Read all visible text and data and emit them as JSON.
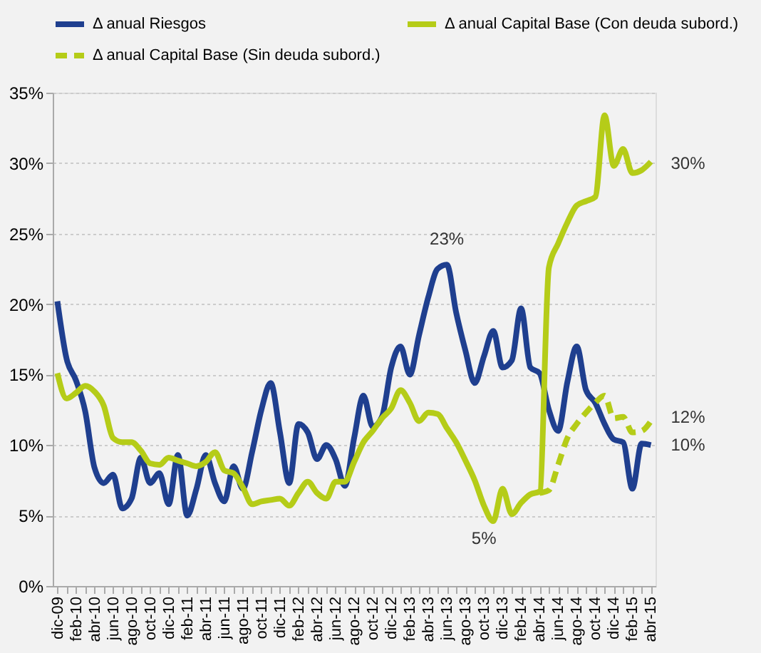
{
  "chart_data": {
    "type": "line",
    "categories": [
      "dic-09",
      null,
      "feb-10",
      null,
      "abr-10",
      null,
      "jun-10",
      null,
      "ago-10",
      null,
      "oct-10",
      null,
      "dic-10",
      null,
      "feb-11",
      null,
      "abr-11",
      null,
      "jun-11",
      null,
      "ago-11",
      null,
      "oct-11",
      null,
      "dic-11",
      null,
      "feb-12",
      null,
      "abr-12",
      null,
      "jun-12",
      null,
      "ago-12",
      null,
      "oct-12",
      null,
      "dic-12",
      null,
      "feb-13",
      null,
      "abr-13",
      null,
      "jun-13",
      null,
      "ago-13",
      null,
      "oct-13",
      null,
      "dic-13",
      null,
      "feb-14",
      null,
      "abr-14",
      null,
      "jun-14",
      null,
      "ago-14",
      null,
      "oct-14",
      null,
      "dic-14",
      null,
      "feb-15",
      null,
      "abr-15"
    ],
    "series": [
      {
        "name": "Δ anual Riesgos",
        "color": "#1f3f8f",
        "line_style": "solid",
        "values": [
          20.2,
          16.1,
          14.6,
          12.4,
          8.4,
          7.3,
          7.9,
          5.5,
          6.2,
          9.1,
          7.3,
          8.0,
          5.8,
          9.3,
          5.0,
          6.9,
          9.3,
          7.3,
          6.0,
          8.5,
          6.9,
          9.5,
          12.5,
          14.4,
          10.9,
          7.3,
          11.5,
          10.9,
          9.0,
          10.0,
          9.0,
          7.1,
          10.5,
          13.5,
          11.3,
          12.0,
          15.5,
          17.0,
          15.0,
          17.8,
          20.5,
          22.5,
          22.8,
          19.4,
          16.7,
          14.4,
          16.3,
          18.1,
          15.5,
          16.0,
          19.7,
          15.5,
          15.1,
          12.5,
          11.0,
          14.5,
          17.0,
          13.9,
          13.0,
          11.5,
          10.4,
          10.2,
          6.9,
          10.1,
          10.0
        ]
      },
      {
        "name": "Δ anual Capital Base (Con deuda subord.)",
        "color": "#b5cc18",
        "line_style": "solid",
        "values": [
          15.1,
          13.3,
          13.7,
          14.2,
          13.8,
          12.8,
          10.5,
          10.2,
          10.2,
          9.6,
          8.7,
          8.6,
          9.1,
          8.9,
          8.7,
          8.5,
          8.8,
          9.5,
          8.2,
          8.0,
          7.0,
          5.8,
          6.0,
          6.1,
          6.2,
          5.7,
          6.6,
          7.4,
          6.6,
          6.2,
          7.4,
          7.4,
          8.8,
          10.2,
          11.0,
          11.9,
          12.6,
          13.9,
          13.0,
          11.7,
          12.3,
          12.2,
          11.2,
          10.2,
          8.9,
          7.5,
          5.7,
          4.6,
          6.9,
          5.1,
          5.9,
          6.5,
          6.7,
          22.6,
          24.3,
          25.8,
          27.0,
          27.3,
          27.6,
          33.4,
          29.8,
          31.0,
          29.3,
          29.5,
          30.1
        ]
      },
      {
        "name": "Δ anual Capital Base (Sin deuda subord.)",
        "color": "#b5cc18",
        "line_style": "dashed",
        "values": [
          null,
          null,
          null,
          null,
          null,
          null,
          null,
          null,
          null,
          null,
          null,
          null,
          null,
          null,
          null,
          null,
          null,
          null,
          null,
          null,
          null,
          null,
          null,
          null,
          null,
          null,
          null,
          null,
          null,
          null,
          null,
          null,
          null,
          null,
          null,
          null,
          null,
          null,
          null,
          null,
          null,
          null,
          null,
          null,
          null,
          null,
          null,
          null,
          null,
          null,
          null,
          null,
          6.6,
          6.8,
          8.6,
          10.5,
          11.5,
          12.3,
          13.0,
          13.5,
          11.9,
          12.0,
          10.9,
          11.0,
          11.7
        ]
      }
    ],
    "ylim": [
      0,
      35
    ],
    "yticks": [
      {
        "value": 0,
        "label": "0%"
      },
      {
        "value": 5,
        "label": "5%"
      },
      {
        "value": 10,
        "label": "10%"
      },
      {
        "value": 15,
        "label": "15%"
      },
      {
        "value": 20,
        "label": "20%"
      },
      {
        "value": 25,
        "label": "25%"
      },
      {
        "value": 30,
        "label": "30%"
      },
      {
        "value": 35,
        "label": "35%"
      }
    ],
    "annotations": [
      {
        "text": "23%",
        "x": "jun-13",
        "y": 23
      },
      {
        "text": "5%",
        "x": "oct-13",
        "y": 5
      },
      {
        "text": "30%",
        "x": "abr-15",
        "y": 30
      },
      {
        "text": "12%",
        "x": "abr-15",
        "y": 12
      },
      {
        "text": "10%",
        "x": "abr-15",
        "y": 10
      }
    ],
    "grid": "y",
    "legend": "top"
  }
}
